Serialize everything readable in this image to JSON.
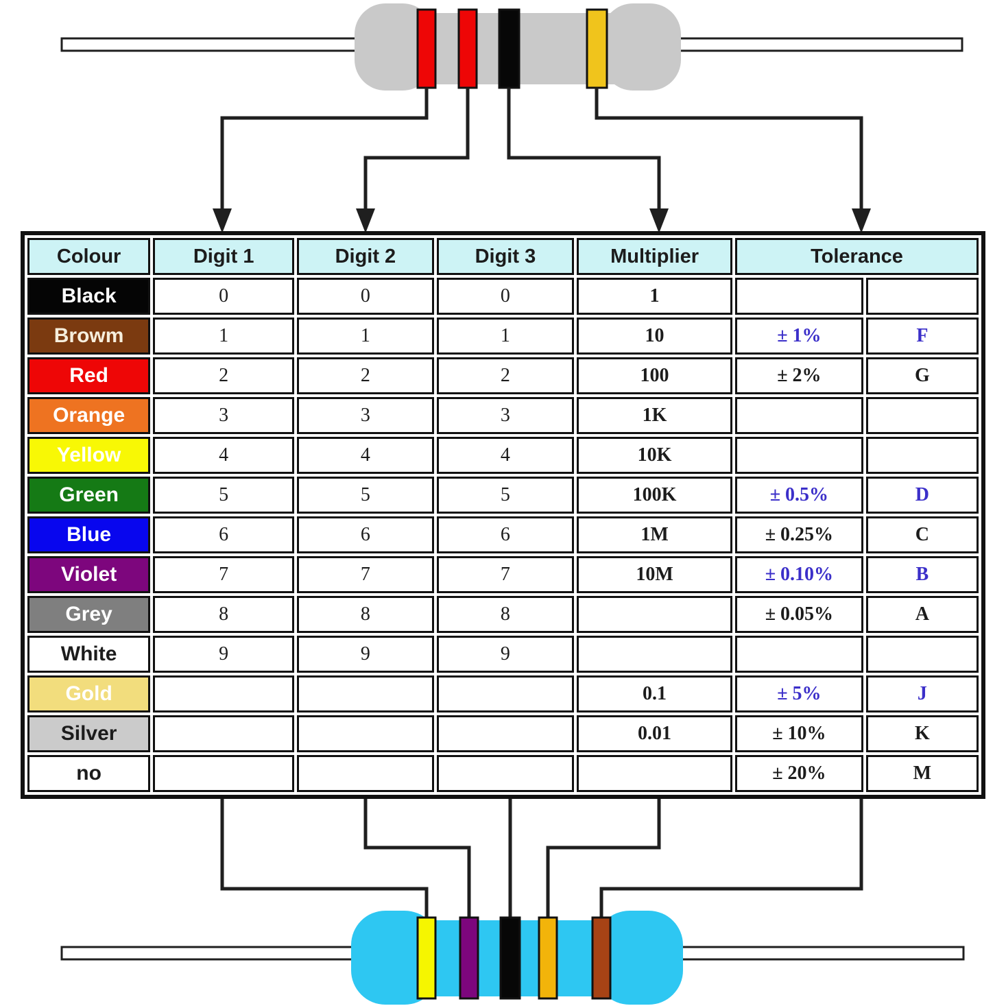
{
  "top_resistor": {
    "label": "4-band resistor",
    "body_color": "#c9c9c9",
    "bands": [
      {
        "name": "red",
        "color": "#ee0606",
        "maps_to": "Digit 1"
      },
      {
        "name": "red",
        "color": "#ee0606",
        "maps_to": "Digit 2"
      },
      {
        "name": "black",
        "color": "#070707",
        "maps_to": "Multiplier"
      },
      {
        "name": "gold",
        "color": "#f0c41c",
        "maps_to": "Tolerance"
      }
    ]
  },
  "bottom_resistor": {
    "label": "5-band resistor",
    "body_color": "#2ec7f2",
    "bands": [
      {
        "name": "yellow",
        "color": "#f6f600",
        "maps_to": "Digit 1"
      },
      {
        "name": "violet",
        "color": "#7d067d",
        "maps_to": "Digit 2"
      },
      {
        "name": "black",
        "color": "#070707",
        "maps_to": "Digit 3"
      },
      {
        "name": "gold",
        "color": "#f2b40a",
        "maps_to": "Multiplier"
      },
      {
        "name": "brown",
        "color": "#a74315",
        "maps_to": "Tolerance"
      }
    ]
  },
  "table": {
    "headers": [
      "Colour",
      "Digit 1",
      "Digit 2",
      "Digit 3",
      "Multiplier",
      "Tolerance"
    ],
    "header_bg": "#cdf3f5",
    "rows": [
      {
        "colour": "Black",
        "bg": "#050505",
        "fg": "#ffffff",
        "d1": "0",
        "d2": "0",
        "d3": "0",
        "mult": "1",
        "tol": "",
        "code": "",
        "tol_blue": false
      },
      {
        "colour": "Browm",
        "bg": "#7b3a10",
        "fg": "#f6eedd",
        "d1": "1",
        "d2": "1",
        "d3": "1",
        "mult": "10",
        "tol": "± 1%",
        "code": "F",
        "tol_blue": true
      },
      {
        "colour": "Red",
        "bg": "#ee0606",
        "fg": "#ffffff",
        "d1": "2",
        "d2": "2",
        "d3": "2",
        "mult": "100",
        "tol": "± 2%",
        "code": "G",
        "tol_blue": false
      },
      {
        "colour": "Orange",
        "bg": "#ee7321",
        "fg": "#ffffff",
        "d1": "3",
        "d2": "3",
        "d3": "3",
        "mult": "1K",
        "tol": "",
        "code": "",
        "tol_blue": false
      },
      {
        "colour": "Yellow",
        "bg": "#f8f805",
        "fg": "#ffffff",
        "d1": "4",
        "d2": "4",
        "d3": "4",
        "mult": "10K",
        "tol": "",
        "code": "",
        "tol_blue": false
      },
      {
        "colour": "Green",
        "bg": "#157a15",
        "fg": "#ffffff",
        "d1": "5",
        "d2": "5",
        "d3": "5",
        "mult": "100K",
        "tol": "± 0.5%",
        "code": "D",
        "tol_blue": true
      },
      {
        "colour": "Blue",
        "bg": "#0806ee",
        "fg": "#ffffff",
        "d1": "6",
        "d2": "6",
        "d3": "6",
        "mult": "1M",
        "tol": "± 0.25%",
        "code": "C",
        "tol_blue": false
      },
      {
        "colour": "Violet",
        "bg": "#7d067d",
        "fg": "#ffffff",
        "d1": "7",
        "d2": "7",
        "d3": "7",
        "mult": "10M",
        "tol": "± 0.10%",
        "code": "B",
        "tol_blue": true
      },
      {
        "colour": "Grey",
        "bg": "#7f7f7f",
        "fg": "#ffffff",
        "d1": "8",
        "d2": "8",
        "d3": "8",
        "mult": "",
        "tol": "± 0.05%",
        "code": "A",
        "tol_blue": false
      },
      {
        "colour": "White",
        "bg": "#ffffff",
        "fg": "#1c1c1c",
        "d1": "9",
        "d2": "9",
        "d3": "9",
        "mult": "",
        "tol": "",
        "code": "",
        "tol_blue": false
      },
      {
        "colour": "Gold",
        "bg": "#f2dd7d",
        "fg": "#ffffff",
        "d1": "",
        "d2": "",
        "d3": "",
        "mult": "0.1",
        "tol": "± 5%",
        "code": "J",
        "tol_blue": true
      },
      {
        "colour": "Silver",
        "bg": "#cbcbcb",
        "fg": "#1c1c1c",
        "d1": "",
        "d2": "",
        "d3": "",
        "mult": "0.01",
        "tol": "± 10%",
        "code": "K",
        "tol_blue": false
      },
      {
        "colour": "no",
        "bg": "#ffffff",
        "fg": "#1c1c1c",
        "d1": "",
        "d2": "",
        "d3": "",
        "mult": "",
        "tol": "± 20%",
        "code": "M",
        "tol_blue": false
      }
    ]
  },
  "colors": {
    "blue_text": "#3b2fc9",
    "line": "#1f1f1f",
    "header_bg": "#cdf3f5"
  }
}
